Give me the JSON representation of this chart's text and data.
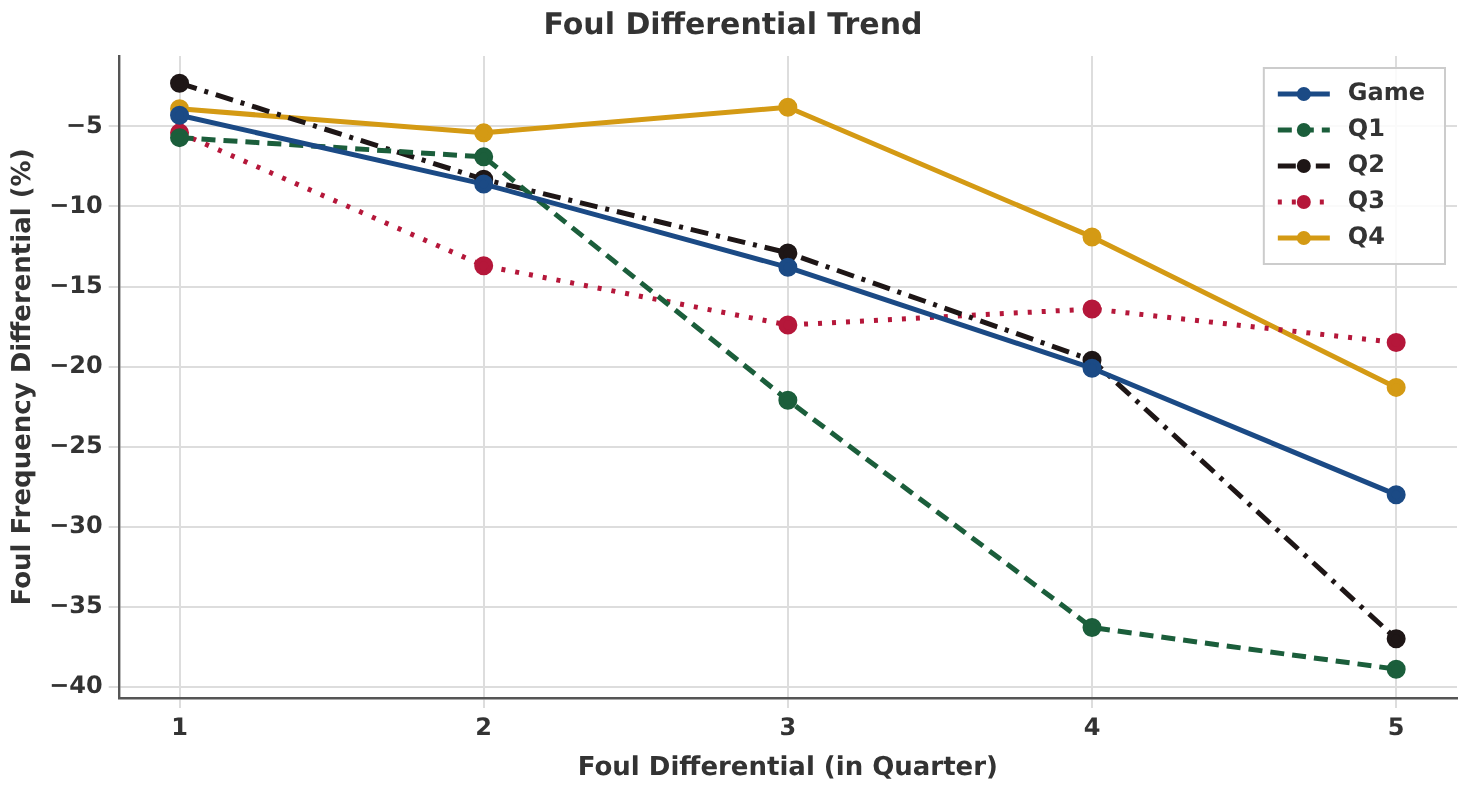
{
  "chart_data": {
    "type": "line",
    "title": "Foul Differential Trend",
    "xlabel": "Foul Differential (in Quarter)",
    "ylabel": "Foul Frequency Differential (%)",
    "x": [
      1,
      2,
      3,
      4,
      5
    ],
    "series": [
      {
        "name": "Game",
        "color": "#1b4a85",
        "values": [
          -4.3,
          -8.6,
          -13.8,
          -20.1,
          -28.0
        ],
        "line_style": "solid"
      },
      {
        "name": "Q1",
        "color": "#1b5e3b",
        "values": [
          -5.7,
          -6.9,
          -22.1,
          -36.3,
          -38.9
        ],
        "line_style": "dashed"
      },
      {
        "name": "Q2",
        "color": "#1e1616",
        "values": [
          -2.3,
          -8.3,
          -12.9,
          -19.6,
          -37.0
        ],
        "line_style": "dashdot"
      },
      {
        "name": "Q3",
        "color": "#b5173a",
        "values": [
          -5.4,
          -13.7,
          -17.4,
          -16.4,
          -18.5
        ],
        "line_style": "dotted"
      },
      {
        "name": "Q4",
        "color": "#d49a14",
        "values": [
          -3.9,
          -5.4,
          -3.8,
          -11.9,
          -21.3
        ],
        "line_style": "solid"
      }
    ],
    "xlim": [
      0.8,
      5.2
    ],
    "xticks": [
      1,
      2,
      3,
      4,
      5
    ],
    "ylim": [
      -40.7,
      -0.6
    ],
    "yticks": [
      {
        "value": -5,
        "label": "−5"
      },
      {
        "value": -10,
        "label": "−10"
      },
      {
        "value": -15,
        "label": "−15"
      },
      {
        "value": -20,
        "label": "−20"
      },
      {
        "value": -25,
        "label": "−25"
      },
      {
        "value": -30,
        "label": "−30"
      },
      {
        "value": -35,
        "label": "−35"
      },
      {
        "value": -40,
        "label": "−40"
      }
    ],
    "grid": true,
    "legend": "top right",
    "marker": "circle"
  }
}
